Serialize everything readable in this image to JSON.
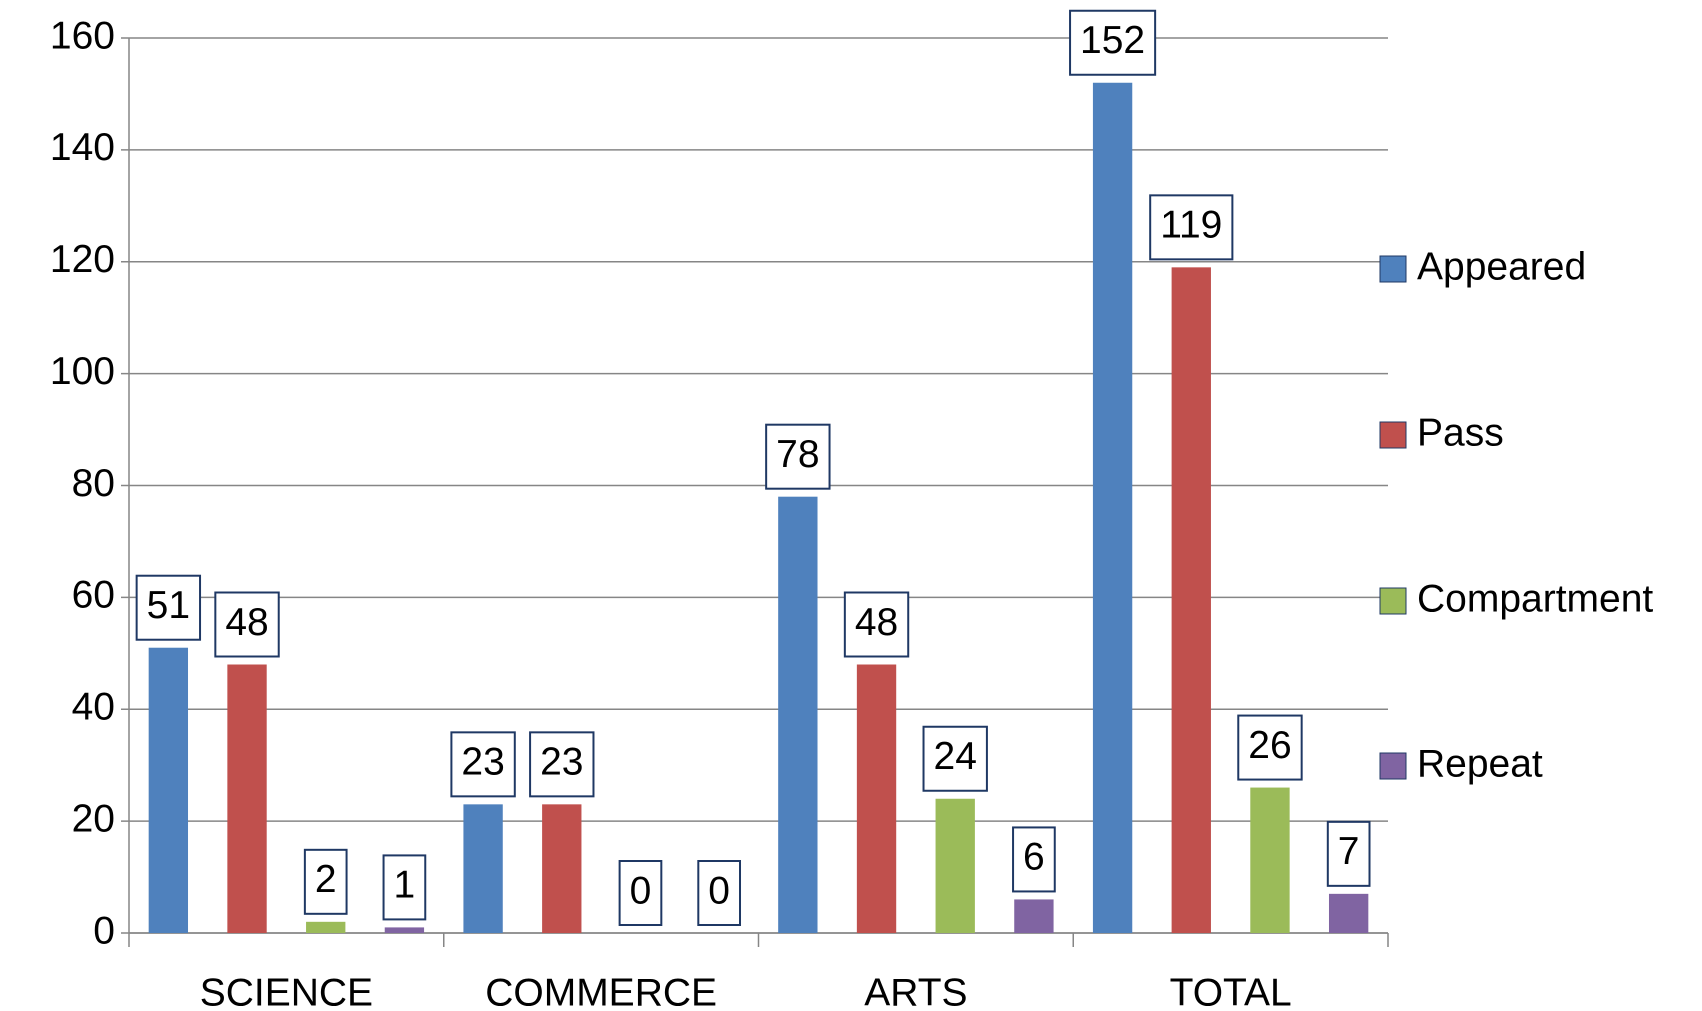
{
  "chart_data": {
    "type": "bar",
    "categories": [
      "SCIENCE",
      "COMMERCE",
      "ARTS",
      "TOTAL"
    ],
    "series": [
      {
        "name": "Appeared",
        "color": "#4f81bd",
        "values": [
          51,
          23,
          78,
          152
        ]
      },
      {
        "name": "Pass",
        "color": "#c0504d",
        "values": [
          48,
          23,
          48,
          119
        ]
      },
      {
        "name": "Compartment",
        "color": "#9bbb59",
        "values": [
          2,
          0,
          24,
          26
        ]
      },
      {
        "name": "Repeat",
        "color": "#8064a2",
        "values": [
          1,
          0,
          6,
          7
        ]
      }
    ],
    "ylim": [
      0,
      160
    ],
    "yticks": [
      0,
      20,
      40,
      60,
      80,
      100,
      120,
      140,
      160
    ],
    "grid": true,
    "legend": "right"
  }
}
